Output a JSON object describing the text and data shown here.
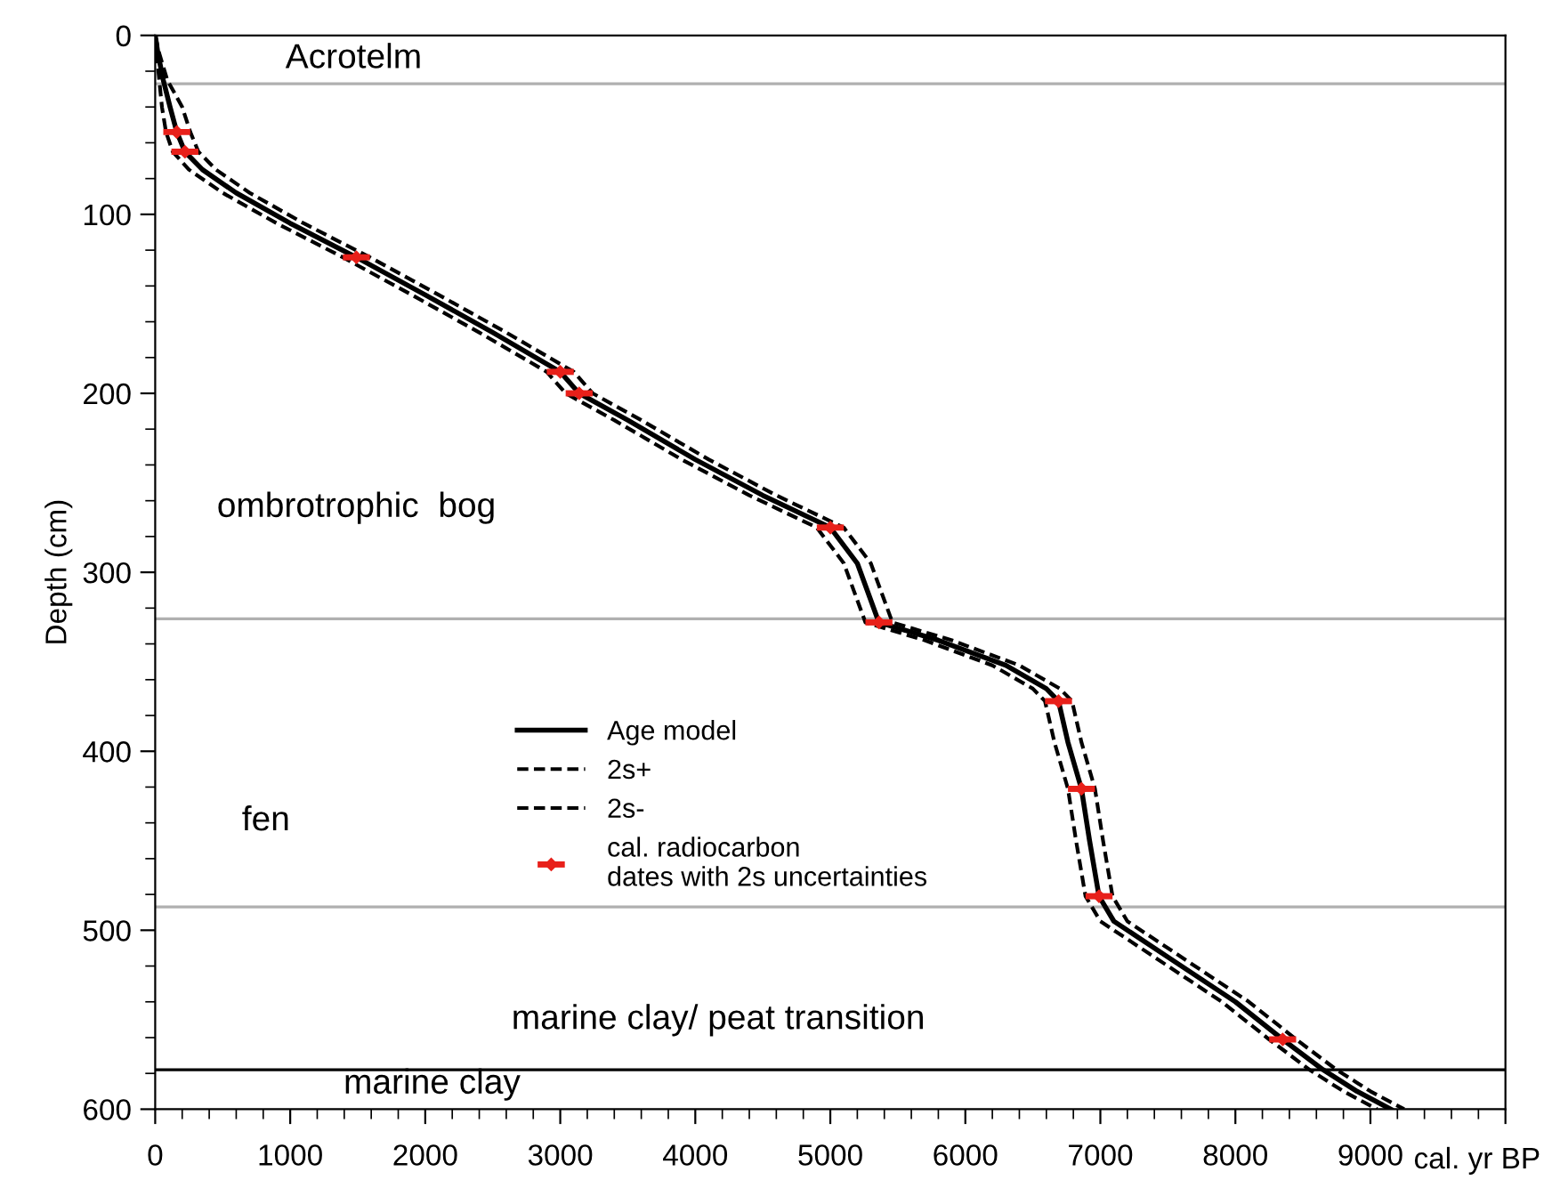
{
  "chart_data": {
    "type": "line",
    "xlabel": "cal. yr BP",
    "ylabel": "Depth (cm)",
    "xlim": [
      0,
      10000
    ],
    "xticks": [
      0,
      1000,
      2000,
      3000,
      4000,
      5000,
      6000,
      7000,
      8000,
      9000,
      {
        "value": 10000,
        "label": null
      }
    ],
    "ylim": [
      600,
      0
    ],
    "yticks": [
      0,
      100,
      200,
      300,
      400,
      500,
      600
    ],
    "grid": false,
    "legend": "bottom",
    "series": [
      {
        "name": "Age model",
        "color": "#000000",
        "line_style": "solid",
        "x": [
          0,
          20,
          60,
          110,
          160,
          220,
          350,
          600,
          1000,
          1490,
          2000,
          2500,
          3000,
          3140,
          3500,
          4000,
          4500,
          5000,
          5200,
          5360,
          5800,
          6300,
          6600,
          6690,
          6760,
          6860,
          6920,
          6990,
          7100,
          7500,
          8000,
          8350,
          8650,
          8900,
          9150
        ],
        "values": [
          0,
          10,
          25,
          40,
          54,
          65,
          75,
          88,
          105,
          124,
          145,
          166,
          188,
          200,
          215,
          237,
          257,
          275,
          295,
          328,
          338,
          352,
          365,
          372,
          395,
          421,
          450,
          481,
          495,
          515,
          540,
          561,
          578,
          590,
          600
        ]
      },
      {
        "name": "2s+",
        "color": "#000000",
        "line_style": "dashed",
        "x": [
          0,
          30,
          90,
          200,
          260,
          320,
          450,
          700,
          1100,
          1590,
          2100,
          2600,
          3100,
          3240,
          3600,
          4100,
          4600,
          5100,
          5300,
          5460,
          5900,
          6400,
          6700,
          6790,
          6860,
          6960,
          7020,
          7090,
          7200,
          7600,
          8100,
          8450,
          8750,
          9000,
          9250
        ],
        "values": [
          0,
          10,
          25,
          40,
          54,
          65,
          75,
          88,
          105,
          124,
          145,
          166,
          188,
          200,
          215,
          237,
          257,
          275,
          295,
          328,
          338,
          352,
          365,
          372,
          395,
          421,
          450,
          481,
          495,
          515,
          540,
          561,
          578,
          590,
          600
        ]
      },
      {
        "name": "2s-",
        "color": "#000000",
        "line_style": "dashed",
        "x": [
          0,
          10,
          30,
          50,
          80,
          130,
          250,
          500,
          900,
          1390,
          1900,
          2400,
          2900,
          3040,
          3400,
          3900,
          4400,
          4900,
          5100,
          5260,
          5700,
          6200,
          6500,
          6590,
          6660,
          6760,
          6820,
          6890,
          7000,
          7400,
          7900,
          8250,
          8550,
          8800,
          9050
        ],
        "values": [
          0,
          10,
          25,
          40,
          54,
          65,
          75,
          88,
          105,
          124,
          145,
          166,
          188,
          200,
          215,
          237,
          257,
          275,
          295,
          328,
          338,
          352,
          365,
          372,
          395,
          421,
          450,
          481,
          495,
          515,
          540,
          561,
          578,
          590,
          600
        ]
      },
      {
        "name": "cal. radiocarbon\ndates with 2s uncertainties",
        "type": "scatter",
        "color": "#e8201a",
        "marker": "diamond",
        "x": [
          160,
          220,
          1490,
          3000,
          3140,
          5000,
          5360,
          6690,
          6860,
          6990,
          8350
        ],
        "values": [
          54,
          65,
          124,
          188,
          200,
          275,
          328,
          372,
          421,
          481,
          561
        ],
        "xerrors": [
          100,
          100,
          100,
          100,
          100,
          100,
          100,
          100,
          100,
          100,
          100
        ]
      }
    ],
    "ref_lines": [
      {
        "axis": "y",
        "value": 27,
        "color": "#b0b0b0"
      },
      {
        "axis": "y",
        "value": 326,
        "color": "#b0b0b0"
      },
      {
        "axis": "y",
        "value": 487,
        "color": "#b0b0b0"
      },
      {
        "axis": "y",
        "value": 578,
        "color": "#000000"
      }
    ],
    "annotations": [
      "Acrotelm",
      "ombrotrophic  bog",
      "fen",
      "marine clay/ peat transition",
      "marine clay"
    ]
  }
}
